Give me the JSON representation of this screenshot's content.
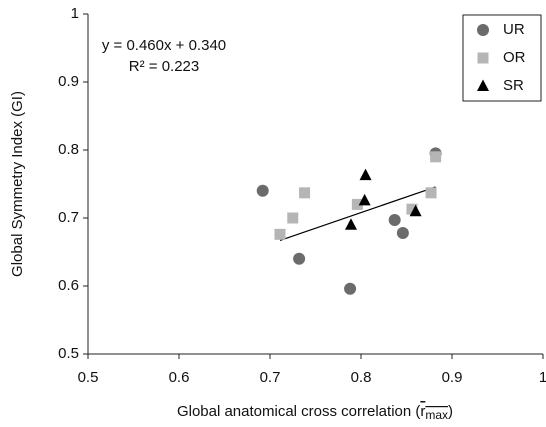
{
  "chart_data": {
    "type": "scatter",
    "ylabel": "Global Symmetry Index (GI)",
    "xlabel": {
      "text": "Global anatomical cross correlation (",
      "symbol": "r",
      "subscript": "max",
      "close": ")"
    },
    "xlim": [
      0.5,
      1
    ],
    "xticks": [
      0.5,
      0.6,
      0.7,
      0.8,
      0.9,
      1
    ],
    "ylim": [
      0.5,
      1
    ],
    "yticks": [
      0.5,
      0.6,
      0.7,
      0.8,
      0.9,
      1
    ],
    "grid": false,
    "legend": "top-right",
    "series": [
      {
        "name": "UR",
        "color": "#6b6b6b",
        "marker": "circle",
        "x": [
          0.692,
          0.732,
          0.788,
          0.837,
          0.846,
          0.882
        ],
        "values": [
          0.74,
          0.64,
          0.596,
          0.697,
          0.678,
          0.795
        ]
      },
      {
        "name": "OR",
        "color": "#b5b5b5",
        "marker": "square",
        "x": [
          0.711,
          0.725,
          0.738,
          0.796,
          0.856,
          0.877,
          0.882
        ],
        "values": [
          0.676,
          0.7,
          0.737,
          0.72,
          0.713,
          0.737,
          0.79
        ]
      },
      {
        "name": "SR",
        "color": "#000000",
        "marker": "triangle",
        "x": [
          0.805,
          0.804,
          0.789,
          0.86
        ],
        "values": [
          0.763,
          0.726,
          0.69,
          0.71
        ]
      }
    ],
    "trendline": {
      "slope": 0.46,
      "intercept": 0.34,
      "x": [
        0.711,
        0.882
      ],
      "color": "#000000"
    },
    "annotations": [
      "y = 0.460x + 0.340",
      "R² = 0.223"
    ]
  }
}
